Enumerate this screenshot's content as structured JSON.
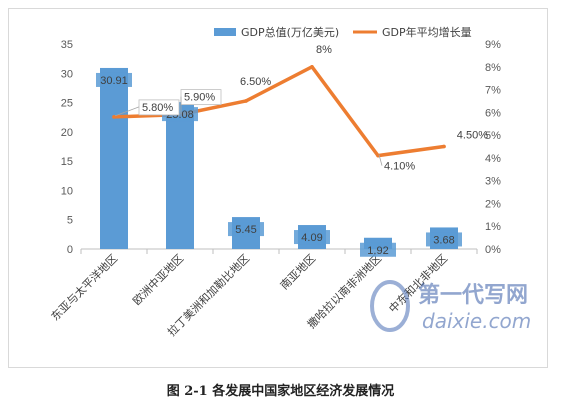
{
  "chart_data": {
    "type": "bar",
    "categories": [
      "东亚与太平洋地区",
      "欧洲中亚地区",
      "拉丁美洲和加勒比地区",
      "南亚地区",
      "撒哈拉以南非洲地区",
      "中东和北非地区"
    ],
    "series": [
      {
        "name": "GDP总值(万亿美元)",
        "type": "bar",
        "axis": "left",
        "color": "#5b9bd5",
        "values": [
          30.91,
          25.08,
          5.45,
          4.09,
          1.92,
          3.68
        ],
        "labels": [
          "30.91",
          "25.08",
          "5.45",
          "4.09",
          "1.92",
          "3.68"
        ]
      },
      {
        "name": "GDP年平均增长量",
        "type": "line",
        "axis": "right",
        "color": "#ed7d31",
        "values": [
          5.8,
          5.9,
          6.5,
          8.0,
          4.1,
          4.5
        ],
        "labels": [
          "5.80%",
          "5.90%",
          "6.50%",
          "8%",
          "4.10%",
          "4.50%"
        ]
      }
    ],
    "y_left": {
      "min": 0,
      "max": 35,
      "step": 5,
      "ticks": [
        "0",
        "5",
        "10",
        "15",
        "20",
        "25",
        "30",
        "35"
      ]
    },
    "y_right": {
      "min": 0,
      "max": 9,
      "step": 1,
      "ticks": [
        "0%",
        "1%",
        "2%",
        "3%",
        "4%",
        "5%",
        "6%",
        "7%",
        "8%",
        "9%"
      ]
    },
    "grid": false,
    "legend": "top-right"
  },
  "caption": "图 2-1  各发展中国家地区经济发展情况",
  "watermark": {
    "brand": "第一代写网",
    "site": "daixie.com"
  }
}
